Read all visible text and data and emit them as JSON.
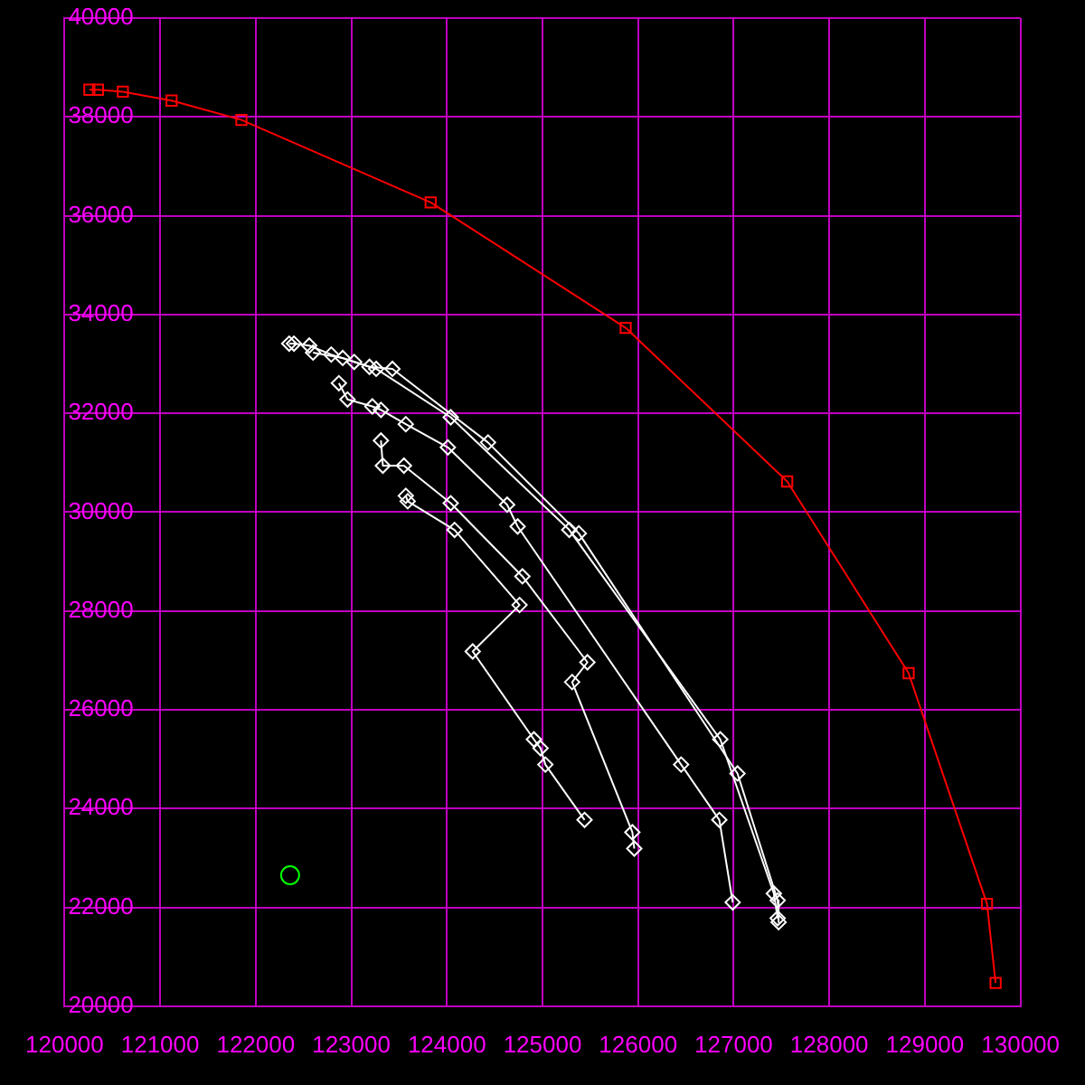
{
  "chart_data": {
    "type": "line",
    "xlim": [
      120000,
      130000
    ],
    "ylim": [
      20000,
      40000
    ],
    "xticks": [
      120000,
      121000,
      122000,
      123000,
      124000,
      125000,
      126000,
      127000,
      128000,
      129000,
      130000
    ],
    "yticks": [
      20000,
      22000,
      24000,
      26000,
      28000,
      30000,
      32000,
      34000,
      36000,
      38000,
      40000
    ],
    "grid": true,
    "legend": false,
    "line_style": "solid",
    "series": [
      {
        "color": "#ff0000",
        "marker": "square",
        "x": [
          120260,
          120350,
          120610,
          121120,
          121850,
          123830,
          125870,
          127560,
          128830,
          129650,
          129740
        ],
        "values": [
          38550,
          38550,
          38510,
          38330,
          37940,
          36270,
          33730,
          30620,
          26740,
          22070,
          20470
        ]
      },
      {
        "color": "#ffffff",
        "marker": "diamond",
        "x": [
          122350,
          122400,
          122560,
          122790,
          123030,
          123260,
          124040,
          125280,
          126860,
          127420,
          127460
        ],
        "values": [
          33410,
          33410,
          33370,
          33190,
          33040,
          32900,
          31920,
          29640,
          25400,
          22280,
          21780
        ]
      },
      {
        "color": "#ffffff",
        "marker": "diamond",
        "x": [
          122600,
          122910,
          123190,
          123430,
          124430,
          125380,
          127040,
          127460,
          127470
        ],
        "values": [
          33230,
          33120,
          32940,
          32900,
          31410,
          29570,
          24710,
          22140,
          21700
        ]
      },
      {
        "color": "#ffffff",
        "marker": "diamond",
        "x": [
          122870,
          122960,
          123220,
          123310,
          123570,
          124010,
          124630,
          124740,
          126450,
          126850,
          126990
        ],
        "values": [
          32610,
          32280,
          32140,
          32070,
          31780,
          31310,
          30150,
          29710,
          24890,
          23770,
          22100
        ]
      },
      {
        "color": "#ffffff",
        "marker": "diamond",
        "x": [
          123310,
          123330,
          123550,
          124040,
          124790,
          125470,
          125310,
          125940,
          125960
        ],
        "values": [
          31450,
          30940,
          30940,
          30180,
          28700,
          26960,
          26560,
          23520,
          23190
        ]
      },
      {
        "color": "#ffffff",
        "marker": "diamond",
        "x": [
          123570,
          123590,
          124080,
          124760,
          124270,
          124910,
          124980,
          125030,
          125440
        ],
        "values": [
          30330,
          30220,
          29640,
          28120,
          27180,
          25400,
          25220,
          24890,
          23770
        ]
      },
      {
        "type": "scatter",
        "color": "#00ff00",
        "marker": "circle",
        "x": [
          122360
        ],
        "values": [
          22650
        ]
      }
    ]
  }
}
